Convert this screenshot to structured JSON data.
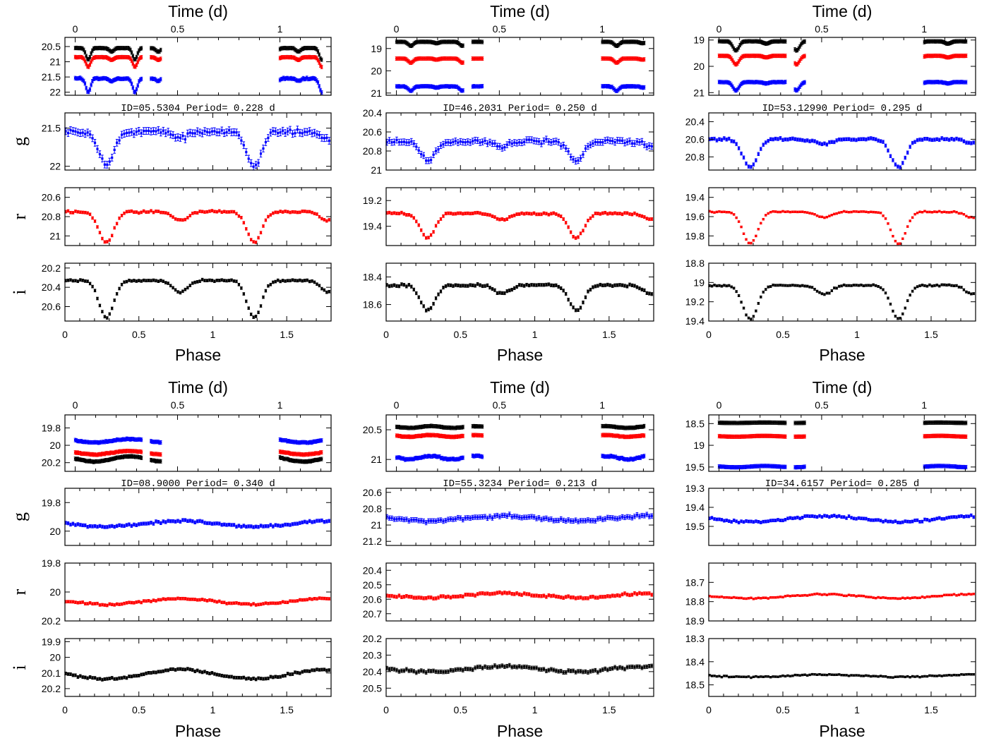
{
  "figure": {
    "time_axis_label": "Time (d)",
    "phase_axis_label": "Phase",
    "band_labels": [
      "g",
      "r",
      "i"
    ],
    "id_prefix": "ID=",
    "period_prefix": "Period= ",
    "period_unit": "d",
    "colors": {
      "g": "#0000ff",
      "r": "#ff0000",
      "i": "#000000"
    }
  },
  "chart_data": [
    {
      "type": "scatter",
      "id": "05.5304",
      "period_d": 0.228,
      "time_panel": {
        "xlim": [
          -0.05,
          1.25
        ],
        "ylim": [
          22.1,
          20.2
        ],
        "yticks": [
          20.5,
          21,
          21.5,
          22
        ],
        "xticks": [
          0,
          0.5,
          1
        ],
        "offsets": {
          "i": 20.55,
          "r": 20.85,
          "g": 21.55
        },
        "scale": 1.0
      },
      "g": {
        "ylim": [
          22.05,
          21.3
        ],
        "yticks": [
          21.5,
          22
        ],
        "mean": 21.55,
        "depth1": 0.45,
        "depth2": 0.08,
        "noise": 0.05,
        "shape": "ew"
      },
      "r": {
        "ylim": [
          21.1,
          20.5
        ],
        "yticks": [
          20.6,
          20.8,
          21
        ],
        "mean": 20.75,
        "depth1": 0.32,
        "depth2": 0.09,
        "noise": 0.015,
        "shape": "ew"
      },
      "i": {
        "ylim": [
          20.75,
          20.15
        ],
        "yticks": [
          20.2,
          20.4,
          20.6
        ],
        "mean": 20.33,
        "depth1": 0.38,
        "depth2": 0.12,
        "noise": 0.015,
        "shape": "ew"
      }
    },
    {
      "type": "scatter",
      "id": "46.2031",
      "period_d": 0.25,
      "time_panel": {
        "xlim": [
          -0.05,
          1.25
        ],
        "ylim": [
          21.1,
          18.5
        ],
        "yticks": [
          19,
          20,
          21
        ],
        "xticks": [
          0,
          0.5,
          1
        ],
        "offsets": {
          "i": 18.7,
          "r": 19.45,
          "g": 20.7
        },
        "scale": 1.0
      },
      "g": {
        "ylim": [
          21.0,
          20.4
        ],
        "yticks": [
          20.4,
          20.6,
          20.8,
          21
        ],
        "mean": 20.7,
        "depth1": 0.2,
        "depth2": 0.05,
        "noise": 0.035,
        "shape": "ew"
      },
      "r": {
        "ylim": [
          19.55,
          19.1
        ],
        "yticks": [
          19.2,
          19.4
        ],
        "mean": 19.3,
        "depth1": 0.19,
        "depth2": 0.05,
        "noise": 0.012,
        "shape": "ew"
      },
      "i": {
        "ylim": [
          18.72,
          18.3
        ],
        "yticks": [
          18.4,
          18.6
        ],
        "mean": 18.46,
        "depth1": 0.18,
        "depth2": 0.06,
        "noise": 0.012,
        "shape": "ew"
      }
    },
    {
      "type": "scatter",
      "id": "53.12990",
      "period_d": 0.295,
      "time_panel": {
        "xlim": [
          -0.05,
          1.25
        ],
        "ylim": [
          21.1,
          18.9
        ],
        "yticks": [
          19,
          20,
          21
        ],
        "xticks": [
          0,
          0.5,
          1
        ],
        "offsets": {
          "i": 19.05,
          "r": 19.6,
          "g": 20.6
        },
        "scale": 1.0
      },
      "g": {
        "ylim": [
          20.95,
          20.3
        ],
        "yticks": [
          20.4,
          20.6,
          20.8
        ],
        "mean": 20.6,
        "depth1": 0.32,
        "depth2": 0.05,
        "noise": 0.02,
        "shape": "ew"
      },
      "r": {
        "ylim": [
          19.9,
          19.3
        ],
        "yticks": [
          19.4,
          19.6,
          19.8
        ],
        "mean": 19.55,
        "depth1": 0.33,
        "depth2": 0.06,
        "noise": 0.01,
        "shape": "ew"
      },
      "i": {
        "ylim": [
          19.4,
          18.8
        ],
        "yticks": [
          18.8,
          19,
          19.2,
          19.4
        ],
        "mean": 19.03,
        "depth1": 0.35,
        "depth2": 0.09,
        "noise": 0.012,
        "shape": "ew"
      }
    },
    {
      "type": "scatter",
      "id": "08.9000",
      "period_d": 0.34,
      "time_panel": {
        "xlim": [
          -0.05,
          1.25
        ],
        "ylim": [
          20.3,
          19.65
        ],
        "yticks": [
          19.8,
          20,
          20.2
        ],
        "xticks": [
          0,
          0.5,
          1
        ],
        "offsets": {
          "g": 19.85,
          "r": 20.0,
          "i": 20.05
        },
        "scale": 1.0
      },
      "g": {
        "ylim": [
          20.1,
          19.7
        ],
        "yticks": [
          19.8,
          20
        ],
        "mean": 19.85,
        "depth1": 0.16,
        "depth2": 0.12,
        "noise": 0.012,
        "shape": "wu"
      },
      "r": {
        "ylim": [
          20.2,
          19.8
        ],
        "yticks": [
          19.8,
          20,
          20.2
        ],
        "mean": 19.98,
        "depth1": 0.14,
        "depth2": 0.1,
        "noise": 0.01,
        "shape": "wu"
      },
      "i": {
        "ylim": [
          20.25,
          19.88
        ],
        "yticks": [
          19.9,
          20,
          20.1,
          20.2
        ],
        "mean": 20.0,
        "depth1": 0.18,
        "depth2": 0.12,
        "noise": 0.01,
        "shape": "wu"
      }
    },
    {
      "type": "scatter",
      "id": "55.3234",
      "period_d": 0.213,
      "time_panel": {
        "xlim": [
          -0.05,
          1.25
        ],
        "ylim": [
          21.2,
          20.25
        ],
        "yticks": [
          20.5,
          21
        ],
        "xticks": [
          0,
          0.5,
          1
        ],
        "offsets": {
          "i": 20.4,
          "r": 20.55,
          "g": 20.9
        },
        "scale": 1.0
      },
      "g": {
        "ylim": [
          21.25,
          20.55
        ],
        "yticks": [
          20.6,
          20.8,
          21,
          21.2
        ],
        "mean": 20.85,
        "depth1": 0.12,
        "depth2": 0.06,
        "noise": 0.03,
        "shape": "wu"
      },
      "r": {
        "ylim": [
          20.75,
          20.35
        ],
        "yticks": [
          20.4,
          20.5,
          20.6,
          20.7
        ],
        "mean": 20.52,
        "depth1": 0.09,
        "depth2": 0.06,
        "noise": 0.012,
        "shape": "wu"
      },
      "i": {
        "ylim": [
          20.55,
          20.2
        ],
        "yticks": [
          20.2,
          20.3,
          20.4,
          20.5
        ],
        "mean": 20.33,
        "depth1": 0.09,
        "depth2": 0.06,
        "noise": 0.012,
        "shape": "wu"
      }
    },
    {
      "type": "scatter",
      "id": "34.6157",
      "period_d": 0.285,
      "time_panel": {
        "xlim": [
          -0.05,
          1.25
        ],
        "ylim": [
          19.6,
          18.3
        ],
        "yticks": [
          18.5,
          19,
          19.5
        ],
        "xticks": [
          0,
          0.5,
          1
        ],
        "offsets": {
          "i": 18.45,
          "r": 18.75,
          "g": 19.45
        },
        "scale": 1.0
      },
      "g": {
        "ylim": [
          19.6,
          19.3
        ],
        "yticks": [
          19.3,
          19.4,
          19.5
        ],
        "mean": 19.42,
        "depth1": 0.07,
        "depth2": 0.04,
        "noise": 0.008,
        "shape": "wu"
      },
      "r": {
        "ylim": [
          18.9,
          18.6
        ],
        "yticks": [
          18.7,
          18.8,
          18.9
        ],
        "mean": 18.73,
        "depth1": 0.07,
        "depth2": 0.05,
        "noise": 0.005,
        "shape": "wu"
      },
      "i": {
        "ylim": [
          18.55,
          18.3
        ],
        "yticks": [
          18.3,
          18.4,
          18.5
        ],
        "mean": 18.43,
        "depth1": 0.05,
        "depth2": 0.04,
        "noise": 0.004,
        "shape": "wu"
      }
    }
  ],
  "phase_axis": {
    "xlim": [
      0,
      1.8
    ],
    "xticks": [
      0,
      0.5,
      1,
      1.5
    ]
  }
}
